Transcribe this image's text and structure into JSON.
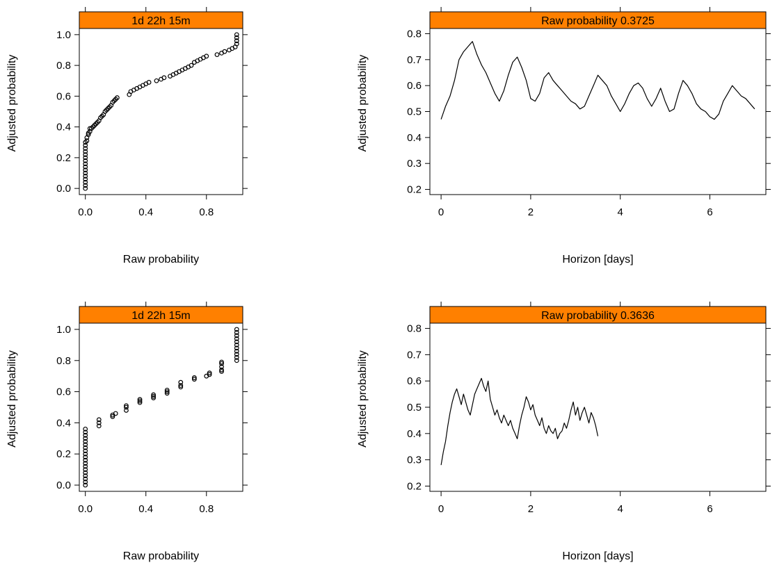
{
  "colors": {
    "strip": "#FF8000",
    "ink": "#000000",
    "background": "#FFFFFF"
  },
  "chart_data": [
    {
      "type": "scatter",
      "strip_label": "1d 22h 15m",
      "xlabel": "Raw probability",
      "ylabel": "Adjusted probability",
      "xlim": [
        -0.04,
        1.04
      ],
      "ylim": [
        -0.04,
        1.04
      ],
      "xticks": [
        0.0,
        0.4,
        0.8
      ],
      "xtick_labels": [
        "0.0",
        "0.4",
        "0.8"
      ],
      "yticks": [
        0.0,
        0.2,
        0.4,
        0.6,
        0.8,
        1.0
      ],
      "ytick_labels": [
        "0.0",
        "0.2",
        "0.4",
        "0.6",
        "0.8",
        "1.0"
      ],
      "marker": "open-circle",
      "points": [
        [
          0.0,
          0.0
        ],
        [
          0.0,
          0.02
        ],
        [
          0.0,
          0.04
        ],
        [
          0.0,
          0.06
        ],
        [
          0.0,
          0.08
        ],
        [
          0.0,
          0.1
        ],
        [
          0.0,
          0.12
        ],
        [
          0.0,
          0.14
        ],
        [
          0.0,
          0.16
        ],
        [
          0.0,
          0.18
        ],
        [
          0.0,
          0.2
        ],
        [
          0.0,
          0.22
        ],
        [
          0.0,
          0.24
        ],
        [
          0.0,
          0.26
        ],
        [
          0.0,
          0.28
        ],
        [
          0.0,
          0.3
        ],
        [
          0.01,
          0.31
        ],
        [
          0.01,
          0.33
        ],
        [
          0.02,
          0.35
        ],
        [
          0.02,
          0.36
        ],
        [
          0.03,
          0.37
        ],
        [
          0.03,
          0.39
        ],
        [
          0.04,
          0.39
        ],
        [
          0.05,
          0.4
        ],
        [
          0.06,
          0.41
        ],
        [
          0.07,
          0.42
        ],
        [
          0.08,
          0.43
        ],
        [
          0.09,
          0.44
        ],
        [
          0.1,
          0.46
        ],
        [
          0.11,
          0.47
        ],
        [
          0.12,
          0.48
        ],
        [
          0.13,
          0.5
        ],
        [
          0.14,
          0.51
        ],
        [
          0.15,
          0.52
        ],
        [
          0.16,
          0.53
        ],
        [
          0.17,
          0.54
        ],
        [
          0.18,
          0.56
        ],
        [
          0.19,
          0.57
        ],
        [
          0.2,
          0.58
        ],
        [
          0.21,
          0.59
        ],
        [
          0.29,
          0.61
        ],
        [
          0.3,
          0.63
        ],
        [
          0.32,
          0.64
        ],
        [
          0.34,
          0.65
        ],
        [
          0.36,
          0.66
        ],
        [
          0.38,
          0.67
        ],
        [
          0.4,
          0.68
        ],
        [
          0.42,
          0.69
        ],
        [
          0.47,
          0.7
        ],
        [
          0.5,
          0.71
        ],
        [
          0.52,
          0.72
        ],
        [
          0.56,
          0.73
        ],
        [
          0.58,
          0.74
        ],
        [
          0.6,
          0.75
        ],
        [
          0.62,
          0.76
        ],
        [
          0.64,
          0.77
        ],
        [
          0.66,
          0.78
        ],
        [
          0.68,
          0.79
        ],
        [
          0.7,
          0.8
        ],
        [
          0.72,
          0.82
        ],
        [
          0.74,
          0.83
        ],
        [
          0.76,
          0.84
        ],
        [
          0.78,
          0.85
        ],
        [
          0.8,
          0.86
        ],
        [
          0.87,
          0.87
        ],
        [
          0.9,
          0.88
        ],
        [
          0.92,
          0.89
        ],
        [
          0.95,
          0.9
        ],
        [
          0.97,
          0.91
        ],
        [
          0.99,
          0.92
        ],
        [
          1.0,
          0.94
        ],
        [
          1.0,
          0.96
        ],
        [
          1.0,
          0.98
        ],
        [
          1.0,
          1.0
        ]
      ]
    },
    {
      "type": "line",
      "strip_label": "Raw probability 0.3725",
      "xlabel": "Horizon [days]",
      "ylabel": "Adjusted probability",
      "xlim": [
        -0.25,
        7.25
      ],
      "ylim": [
        0.18,
        0.82
      ],
      "xticks": [
        0,
        2,
        4,
        6
      ],
      "xtick_labels": [
        "0",
        "2",
        "4",
        "6"
      ],
      "yticks": [
        0.2,
        0.3,
        0.4,
        0.5,
        0.6,
        0.7,
        0.8
      ],
      "ytick_labels": [
        "0.2",
        "0.3",
        "0.4",
        "0.5",
        "0.6",
        "0.7",
        "0.8"
      ],
      "x": [
        0.0,
        0.1,
        0.2,
        0.3,
        0.4,
        0.5,
        0.6,
        0.7,
        0.8,
        0.9,
        1.0,
        1.1,
        1.2,
        1.3,
        1.4,
        1.5,
        1.6,
        1.7,
        1.8,
        1.9,
        2.0,
        2.1,
        2.2,
        2.3,
        2.4,
        2.5,
        2.6,
        2.7,
        2.8,
        2.9,
        3.0,
        3.1,
        3.2,
        3.3,
        3.4,
        3.5,
        3.6,
        3.7,
        3.8,
        3.9,
        4.0,
        4.1,
        4.2,
        4.3,
        4.4,
        4.5,
        4.6,
        4.7,
        4.8,
        4.9,
        5.0,
        5.1,
        5.2,
        5.3,
        5.4,
        5.5,
        5.6,
        5.7,
        5.8,
        5.9,
        6.0,
        6.1,
        6.2,
        6.3,
        6.4,
        6.5,
        6.6,
        6.7,
        6.8,
        6.9,
        7.0
      ],
      "y": [
        0.47,
        0.52,
        0.56,
        0.62,
        0.7,
        0.73,
        0.75,
        0.77,
        0.72,
        0.68,
        0.65,
        0.61,
        0.57,
        0.54,
        0.58,
        0.64,
        0.69,
        0.71,
        0.67,
        0.62,
        0.55,
        0.54,
        0.57,
        0.63,
        0.65,
        0.62,
        0.6,
        0.58,
        0.56,
        0.54,
        0.53,
        0.51,
        0.52,
        0.56,
        0.6,
        0.64,
        0.62,
        0.6,
        0.56,
        0.53,
        0.5,
        0.53,
        0.57,
        0.6,
        0.61,
        0.59,
        0.55,
        0.52,
        0.55,
        0.59,
        0.54,
        0.5,
        0.51,
        0.57,
        0.62,
        0.6,
        0.57,
        0.53,
        0.51,
        0.5,
        0.48,
        0.47,
        0.49,
        0.54,
        0.57,
        0.6,
        0.58,
        0.56,
        0.55,
        0.53,
        0.51
      ]
    },
    {
      "type": "scatter",
      "strip_label": "1d 22h 15m",
      "xlabel": "Raw probability",
      "ylabel": "Adjusted probability",
      "xlim": [
        -0.04,
        1.04
      ],
      "ylim": [
        -0.04,
        1.04
      ],
      "xticks": [
        0.0,
        0.4,
        0.8
      ],
      "xtick_labels": [
        "0.0",
        "0.4",
        "0.8"
      ],
      "yticks": [
        0.0,
        0.2,
        0.4,
        0.6,
        0.8,
        1.0
      ],
      "ytick_labels": [
        "0.0",
        "0.2",
        "0.4",
        "0.6",
        "0.8",
        "1.0"
      ],
      "marker": "open-circle",
      "points": [
        [
          0.0,
          0.0
        ],
        [
          0.0,
          0.02
        ],
        [
          0.0,
          0.04
        ],
        [
          0.0,
          0.06
        ],
        [
          0.0,
          0.08
        ],
        [
          0.0,
          0.1
        ],
        [
          0.0,
          0.12
        ],
        [
          0.0,
          0.14
        ],
        [
          0.0,
          0.16
        ],
        [
          0.0,
          0.18
        ],
        [
          0.0,
          0.2
        ],
        [
          0.0,
          0.22
        ],
        [
          0.0,
          0.24
        ],
        [
          0.0,
          0.26
        ],
        [
          0.0,
          0.28
        ],
        [
          0.0,
          0.3
        ],
        [
          0.0,
          0.32
        ],
        [
          0.0,
          0.34
        ],
        [
          0.0,
          0.36
        ],
        [
          0.09,
          0.38
        ],
        [
          0.09,
          0.4
        ],
        [
          0.09,
          0.42
        ],
        [
          0.18,
          0.44
        ],
        [
          0.18,
          0.45
        ],
        [
          0.2,
          0.46
        ],
        [
          0.27,
          0.48
        ],
        [
          0.27,
          0.5
        ],
        [
          0.27,
          0.51
        ],
        [
          0.36,
          0.53
        ],
        [
          0.36,
          0.54
        ],
        [
          0.36,
          0.55
        ],
        [
          0.45,
          0.56
        ],
        [
          0.45,
          0.57
        ],
        [
          0.45,
          0.58
        ],
        [
          0.54,
          0.59
        ],
        [
          0.54,
          0.6
        ],
        [
          0.54,
          0.61
        ],
        [
          0.63,
          0.63
        ],
        [
          0.63,
          0.64
        ],
        [
          0.63,
          0.66
        ],
        [
          0.72,
          0.68
        ],
        [
          0.72,
          0.69
        ],
        [
          0.8,
          0.7
        ],
        [
          0.82,
          0.71
        ],
        [
          0.82,
          0.72
        ],
        [
          0.9,
          0.73
        ],
        [
          0.9,
          0.74
        ],
        [
          0.9,
          0.76
        ],
        [
          0.9,
          0.78
        ],
        [
          0.9,
          0.79
        ],
        [
          1.0,
          0.8
        ],
        [
          1.0,
          0.82
        ],
        [
          1.0,
          0.84
        ],
        [
          1.0,
          0.86
        ],
        [
          1.0,
          0.88
        ],
        [
          1.0,
          0.9
        ],
        [
          1.0,
          0.92
        ],
        [
          1.0,
          0.94
        ],
        [
          1.0,
          0.96
        ],
        [
          1.0,
          0.98
        ],
        [
          1.0,
          1.0
        ]
      ]
    },
    {
      "type": "line",
      "strip_label": "Raw probability 0.3636",
      "xlabel": "Horizon [days]",
      "ylabel": "Adjusted probability",
      "xlim": [
        -0.25,
        7.25
      ],
      "ylim": [
        0.18,
        0.82
      ],
      "xticks": [
        0,
        2,
        4,
        6
      ],
      "xtick_labels": [
        "0",
        "2",
        "4",
        "6"
      ],
      "yticks": [
        0.2,
        0.3,
        0.4,
        0.5,
        0.6,
        0.7,
        0.8
      ],
      "ytick_labels": [
        "0.2",
        "0.3",
        "0.4",
        "0.5",
        "0.6",
        "0.7",
        "0.8"
      ],
      "x": [
        0.0,
        0.05,
        0.1,
        0.15,
        0.2,
        0.25,
        0.3,
        0.35,
        0.4,
        0.45,
        0.5,
        0.55,
        0.6,
        0.65,
        0.7,
        0.75,
        0.8,
        0.85,
        0.9,
        0.95,
        1.0,
        1.05,
        1.1,
        1.15,
        1.2,
        1.25,
        1.3,
        1.35,
        1.4,
        1.45,
        1.5,
        1.55,
        1.6,
        1.65,
        1.7,
        1.75,
        1.8,
        1.85,
        1.9,
        1.95,
        2.0,
        2.05,
        2.1,
        2.15,
        2.2,
        2.25,
        2.3,
        2.35,
        2.4,
        2.45,
        2.5,
        2.55,
        2.6,
        2.65,
        2.7,
        2.75,
        2.8,
        2.85,
        2.9,
        2.95,
        3.0,
        3.05,
        3.1,
        3.15,
        3.2,
        3.25,
        3.3,
        3.35,
        3.4,
        3.45,
        3.5
      ],
      "y": [
        0.28,
        0.33,
        0.37,
        0.43,
        0.48,
        0.52,
        0.55,
        0.57,
        0.54,
        0.51,
        0.55,
        0.52,
        0.49,
        0.47,
        0.51,
        0.55,
        0.57,
        0.59,
        0.61,
        0.58,
        0.56,
        0.6,
        0.53,
        0.5,
        0.47,
        0.49,
        0.46,
        0.44,
        0.47,
        0.45,
        0.43,
        0.45,
        0.42,
        0.4,
        0.38,
        0.43,
        0.47,
        0.5,
        0.54,
        0.52,
        0.49,
        0.51,
        0.47,
        0.45,
        0.43,
        0.46,
        0.42,
        0.4,
        0.43,
        0.41,
        0.4,
        0.42,
        0.38,
        0.4,
        0.41,
        0.44,
        0.42,
        0.45,
        0.49,
        0.52,
        0.47,
        0.5,
        0.45,
        0.48,
        0.5,
        0.47,
        0.44,
        0.48,
        0.46,
        0.43,
        0.39
      ]
    }
  ]
}
